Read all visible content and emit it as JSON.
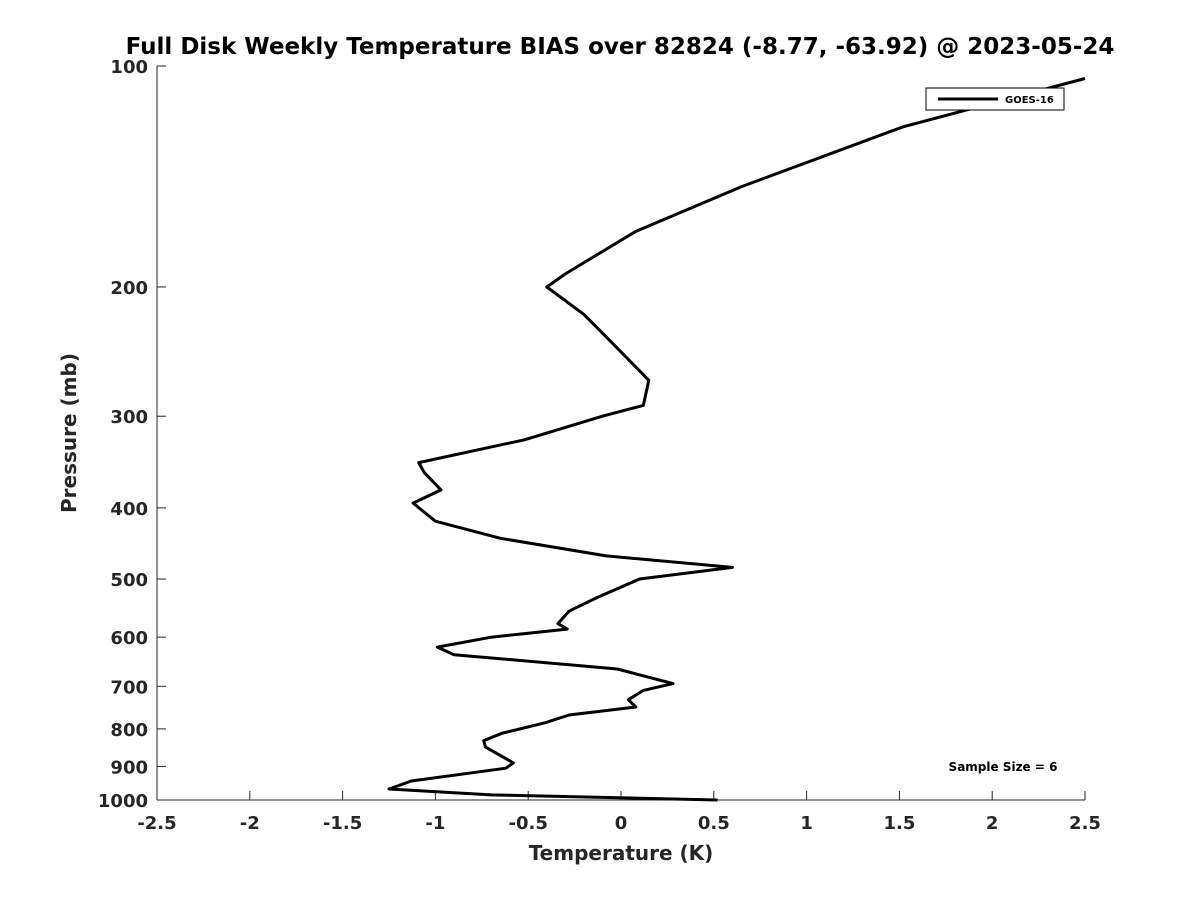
{
  "chart_data": {
    "type": "line",
    "title": "Full Disk Weekly Temperature BIAS over 82824 (-8.77, -63.92) @ 2023-05-24",
    "xlabel": "Temperature (K)",
    "ylabel": "Pressure (mb)",
    "xlim": [
      -2.5,
      2.5
    ],
    "ylim": [
      100,
      1000
    ],
    "y_scale": "log",
    "y_reversed": true,
    "grid": false,
    "x_ticks": [
      -2.5,
      -2,
      -1.5,
      -1,
      -0.5,
      0,
      0.5,
      1,
      1.5,
      2,
      2.5
    ],
    "x_tick_labels": [
      "-2.5",
      "-2",
      "-1.5",
      "-1",
      "-0.5",
      "0",
      "0.5",
      "1",
      "1.5",
      "2",
      "2.5"
    ],
    "y_ticks": [
      100,
      200,
      300,
      400,
      500,
      600,
      700,
      800,
      900,
      1000
    ],
    "y_tick_labels": [
      "100",
      "200",
      "300",
      "400",
      "500",
      "600",
      "700",
      "800",
      "900",
      "1000"
    ],
    "legend_position": "top-right",
    "legend_entries": [
      "GOES-16"
    ],
    "annotation": "Sample Size = 6",
    "series": [
      {
        "name": "GOES-16",
        "color": "#000000",
        "x": [
          2.5,
          1.52,
          0.65,
          0.08,
          -0.3,
          -0.4,
          -0.2,
          -0.05,
          0.15,
          0.12,
          -0.1,
          -0.52,
          -1.09,
          -1.06,
          -0.97,
          -1.12,
          -1.0,
          -0.65,
          -0.08,
          0.6,
          0.1,
          -0.13,
          -0.28,
          -0.34,
          -0.29,
          -0.7,
          -0.99,
          -0.9,
          -0.02,
          0.28,
          0.12,
          0.04,
          0.08,
          -0.28,
          -0.41,
          -0.64,
          -0.74,
          -0.73,
          -0.58,
          -0.62,
          -1.13,
          -1.25,
          -0.7,
          0.52
        ],
        "y": [
          104,
          121,
          146,
          168,
          192,
          200,
          218,
          238,
          268,
          290,
          300,
          323,
          347,
          358,
          378,
          394,
          417,
          440,
          465,
          482,
          500,
          530,
          553,
          575,
          585,
          600,
          619,
          634,
          663,
          694,
          709,
          730,
          747,
          766,
          785,
          811,
          830,
          847,
          890,
          905,
          942,
          966,
          984,
          1000
        ]
      }
    ]
  }
}
